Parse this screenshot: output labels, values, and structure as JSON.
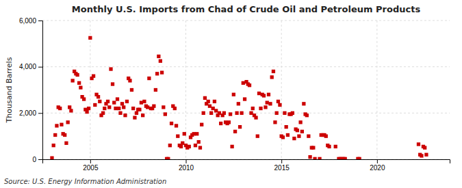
{
  "chart_data": {
    "type": "scatter",
    "title": "Monthly U.S. Imports from Chad of Crude Oil and Petroleum Products",
    "ylabel": "Thousand Barrels",
    "source": "Source: U.S. Energy Information Administration",
    "color": "#cc0000",
    "marker": "square",
    "grid": true,
    "xlim": [
      2002.5,
      2023.8
    ],
    "xticks": [
      2005,
      2010,
      2015,
      2020
    ],
    "ylim": [
      0,
      6000
    ],
    "yticks": [
      0,
      {
        "value": 2000,
        "label": "2,000"
      },
      {
        "value": 4000,
        "label": "4,000"
      },
      {
        "value": 6000,
        "label": "6,000"
      }
    ],
    "x": [
      2003.0,
      2003.08,
      2003.17,
      2003.25,
      2003.33,
      2003.42,
      2003.5,
      2003.58,
      2003.67,
      2003.75,
      2003.83,
      2003.92,
      2004.0,
      2004.08,
      2004.17,
      2004.25,
      2004.33,
      2004.42,
      2004.5,
      2004.58,
      2004.67,
      2004.75,
      2004.83,
      2004.92,
      2005.0,
      2005.08,
      2005.17,
      2005.25,
      2005.33,
      2005.42,
      2005.5,
      2005.58,
      2005.67,
      2005.75,
      2005.83,
      2005.92,
      2006.0,
      2006.08,
      2006.17,
      2006.25,
      2006.33,
      2006.42,
      2006.5,
      2006.58,
      2006.67,
      2006.75,
      2006.83,
      2006.92,
      2007.0,
      2007.08,
      2007.17,
      2007.25,
      2007.33,
      2007.42,
      2007.5,
      2007.58,
      2007.67,
      2007.75,
      2007.83,
      2007.92,
      2008.0,
      2008.08,
      2008.17,
      2008.25,
      2008.33,
      2008.42,
      2008.5,
      2008.58,
      2008.67,
      2008.75,
      2008.83,
      2008.92,
      2009.0,
      2009.08,
      2009.17,
      2009.25,
      2009.33,
      2009.42,
      2009.5,
      2009.58,
      2009.67,
      2009.75,
      2009.83,
      2009.92,
      2010.0,
      2010.08,
      2010.17,
      2010.25,
      2010.33,
      2010.42,
      2010.5,
      2010.58,
      2010.67,
      2010.75,
      2010.83,
      2010.92,
      2011.0,
      2011.08,
      2011.17,
      2011.25,
      2011.33,
      2011.42,
      2011.5,
      2011.58,
      2011.67,
      2011.75,
      2011.83,
      2011.92,
      2012.0,
      2012.08,
      2012.17,
      2012.25,
      2012.33,
      2012.42,
      2012.5,
      2012.58,
      2012.67,
      2012.75,
      2012.83,
      2012.92,
      2013.0,
      2013.08,
      2013.17,
      2013.25,
      2013.33,
      2013.42,
      2013.5,
      2013.58,
      2013.67,
      2013.75,
      2013.83,
      2013.92,
      2014.0,
      2014.08,
      2014.17,
      2014.25,
      2014.33,
      2014.42,
      2014.5,
      2014.58,
      2014.67,
      2014.75,
      2014.83,
      2014.92,
      2015.0,
      2015.08,
      2015.17,
      2015.25,
      2015.33,
      2015.42,
      2015.5,
      2015.58,
      2015.67,
      2015.75,
      2015.83,
      2015.92,
      2016.0,
      2016.08,
      2016.17,
      2016.25,
      2016.33,
      2016.42,
      2016.5,
      2016.58,
      2016.67,
      2016.75,
      2017.0,
      2017.08,
      2017.17,
      2017.25,
      2017.33,
      2017.42,
      2017.5,
      2017.83,
      2018.0,
      2018.08,
      2018.17,
      2018.25,
      2018.33,
      2019.0,
      2019.08,
      2022.17,
      2022.25,
      2022.33,
      2022.42,
      2022.5,
      2022.58
    ],
    "values": [
      55,
      600,
      1050,
      1450,
      2250,
      2200,
      1500,
      1100,
      1050,
      700,
      1600,
      2250,
      2100,
      3400,
      3800,
      3700,
      3650,
      3300,
      3100,
      2700,
      2600,
      2150,
      2050,
      2200,
      5250,
      3500,
      3600,
      2350,
      2800,
      2700,
      2500,
      1900,
      2000,
      2200,
      2400,
      2500,
      2250,
      3900,
      3250,
      2450,
      2200,
      2600,
      2200,
      2000,
      2400,
      2250,
      1900,
      2500,
      3500,
      3400,
      3000,
      2200,
      1800,
      2000,
      2150,
      2150,
      2450,
      1900,
      2500,
      2300,
      2250,
      3500,
      2200,
      2200,
      2300,
      3000,
      3700,
      4450,
      4250,
      3750,
      2250,
      1950,
      20,
      20,
      600,
      1550,
      2300,
      2200,
      1450,
      1000,
      600,
      550,
      700,
      1100,
      600,
      500,
      550,
      950,
      1050,
      1100,
      600,
      1100,
      750,
      500,
      1500,
      2000,
      2650,
      2400,
      2500,
      2300,
      2000,
      2200,
      2500,
      2100,
      1900,
      2000,
      1550,
      1900,
      2000,
      1600,
      1550,
      1600,
      1950,
      550,
      2800,
      1200,
      2000,
      2400,
      1400,
      2000,
      3300,
      2600,
      3350,
      3250,
      3200,
      2000,
      2200,
      1900,
      1800,
      1000,
      2850,
      2200,
      2800,
      2750,
      2250,
      2450,
      2800,
      2400,
      3550,
      3800,
      1600,
      2000,
      2500,
      2350,
      1000,
      950,
      2000,
      1400,
      1050,
      1950,
      1950,
      2000,
      900,
      1300,
      1250,
      1000,
      1600,
      1200,
      2400,
      1950,
      1900,
      1000,
      100,
      500,
      500,
      20,
      20,
      1050,
      1050,
      1050,
      1000,
      600,
      550,
      550,
      20,
      20,
      20,
      20,
      20,
      20,
      20,
      650,
      200,
      150,
      550,
      500,
      200
    ]
  }
}
